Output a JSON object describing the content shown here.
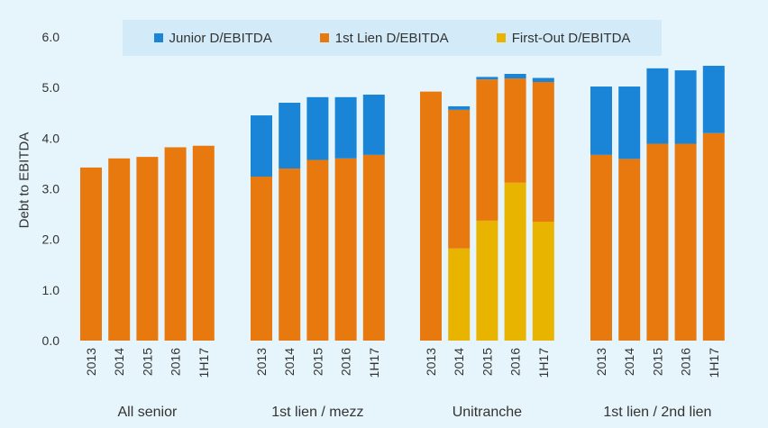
{
  "chart_data": {
    "type": "bar",
    "stacked": true,
    "ylabel": "Debt to EBITDA",
    "ylim": [
      0,
      6
    ],
    "yticks": [
      "0.0",
      "1.0",
      "2.0",
      "3.0",
      "4.0",
      "5.0",
      "6.0"
    ],
    "grid": false,
    "legend_position": "top",
    "series": [
      {
        "key": "firstout",
        "name": "First-Out D/EBITDA",
        "color": "#e8b400"
      },
      {
        "key": "first",
        "name": "1st Lien D/EBITDA",
        "color": "#e8790e"
      },
      {
        "key": "junior",
        "name": "Junior D/EBITDA",
        "color": "#1a84d6"
      }
    ],
    "groups": [
      {
        "name": "All senior",
        "categories": [
          "2013",
          "2014",
          "2015",
          "2016",
          "1H17"
        ],
        "firstout": [
          0,
          0,
          0,
          0,
          0
        ],
        "first": [
          3.42,
          3.6,
          3.63,
          3.82,
          3.85
        ],
        "junior": [
          0,
          0,
          0,
          0,
          0
        ]
      },
      {
        "name": "1st lien / mezz",
        "categories": [
          "2013",
          "2014",
          "2015",
          "2016",
          "1H17"
        ],
        "firstout": [
          0,
          0,
          0,
          0,
          0
        ],
        "first": [
          3.24,
          3.4,
          3.57,
          3.6,
          3.67
        ],
        "junior": [
          1.21,
          1.3,
          1.24,
          1.21,
          1.19
        ]
      },
      {
        "name": "Unitranche",
        "categories": [
          "2013",
          "2014",
          "2015",
          "2016",
          "1H17"
        ],
        "firstout": [
          0,
          1.82,
          2.37,
          3.12,
          2.35
        ],
        "first": [
          4.92,
          2.74,
          2.79,
          2.06,
          2.76
        ],
        "junior": [
          0,
          0.07,
          0.05,
          0.09,
          0.08
        ]
      },
      {
        "name": "1st lien / 2nd lien",
        "categories": [
          "2013",
          "2014",
          "2015",
          "2016",
          "1H17"
        ],
        "firstout": [
          0,
          0,
          0,
          0,
          0
        ],
        "first": [
          3.67,
          3.59,
          3.89,
          3.89,
          4.1
        ],
        "junior": [
          1.35,
          1.43,
          1.49,
          1.45,
          1.33
        ]
      }
    ]
  }
}
